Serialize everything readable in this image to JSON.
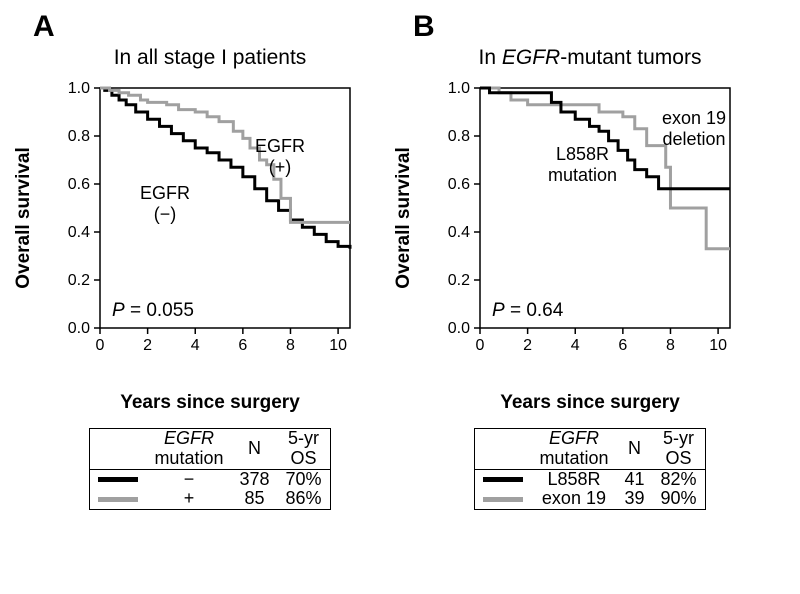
{
  "colors": {
    "black": "#000000",
    "gray": "#a0a0a0",
    "bg": "#ffffff"
  },
  "typography": {
    "panel_label_fontsize": 30,
    "subtitle_fontsize": 21,
    "axis_label_fontsize": 19,
    "tick_fontsize": 16,
    "annot_fontsize": 18,
    "pval_fontsize": 19,
    "table_fontsize": 18
  },
  "panelA": {
    "letter": "A",
    "subtitle": "In all stage I patients",
    "xlabel": "Years since surgery",
    "ylabel": "Overall survival",
    "xlim": [
      0,
      10.5
    ],
    "ylim": [
      0,
      1.0
    ],
    "xticks": [
      0,
      2,
      4,
      6,
      8,
      10
    ],
    "yticks": [
      0.0,
      0.2,
      0.4,
      0.6,
      0.8,
      1.0
    ],
    "pvalue": "P = 0.055",
    "pvalue_prefix": "P",
    "pvalue_rest": " = 0.055",
    "curves": {
      "pos": {
        "color": "#a0a0a0",
        "label1": "EGFR",
        "label2": "(+)",
        "points": [
          [
            0,
            1.0
          ],
          [
            0.4,
            0.99
          ],
          [
            0.8,
            0.98
          ],
          [
            1.2,
            0.97
          ],
          [
            1.7,
            0.95
          ],
          [
            2.0,
            0.94
          ],
          [
            2.8,
            0.93
          ],
          [
            3.3,
            0.91
          ],
          [
            4.0,
            0.9
          ],
          [
            4.5,
            0.88
          ],
          [
            5.0,
            0.86
          ],
          [
            5.6,
            0.82
          ],
          [
            6.0,
            0.79
          ],
          [
            6.3,
            0.75
          ],
          [
            6.7,
            0.7
          ],
          [
            7.0,
            0.68
          ],
          [
            7.3,
            0.62
          ],
          [
            7.6,
            0.54
          ],
          [
            8.0,
            0.44
          ],
          [
            10.5,
            0.44
          ]
        ]
      },
      "neg": {
        "color": "#000000",
        "label1": "EGFR",
        "label2": "(−)",
        "points": [
          [
            0,
            1.0
          ],
          [
            0.2,
            0.99
          ],
          [
            0.5,
            0.97
          ],
          [
            0.8,
            0.95
          ],
          [
            1.1,
            0.93
          ],
          [
            1.5,
            0.9
          ],
          [
            2.0,
            0.87
          ],
          [
            2.5,
            0.84
          ],
          [
            3.0,
            0.81
          ],
          [
            3.5,
            0.78
          ],
          [
            4.0,
            0.75
          ],
          [
            4.5,
            0.73
          ],
          [
            5.0,
            0.7
          ],
          [
            5.5,
            0.67
          ],
          [
            6.0,
            0.63
          ],
          [
            6.5,
            0.58
          ],
          [
            7.0,
            0.53
          ],
          [
            7.5,
            0.49
          ],
          [
            8.0,
            0.45
          ],
          [
            8.5,
            0.42
          ],
          [
            9.0,
            0.39
          ],
          [
            9.5,
            0.36
          ],
          [
            10.0,
            0.34
          ],
          [
            10.5,
            0.33
          ]
        ]
      }
    },
    "legend": {
      "header_col1_line1": "EGFR",
      "header_col1_line2": "mutation",
      "header_col2": "N",
      "header_col3_line1": "5-yr",
      "header_col3_line2": "OS",
      "rows": [
        {
          "swatch_color": "#000000",
          "label": "−",
          "n": "378",
          "os": "70%"
        },
        {
          "swatch_color": "#a0a0a0",
          "label": "+",
          "n": "85",
          "os": "86%"
        }
      ]
    }
  },
  "panelB": {
    "letter": "B",
    "subtitle_prefix": "In ",
    "subtitle_italic": "EGFR",
    "subtitle_suffix": "-mutant tumors",
    "xlabel": "Years since surgery",
    "ylabel": "Overall survival",
    "xlim": [
      0,
      10.5
    ],
    "ylim": [
      0,
      1.0
    ],
    "xticks": [
      0,
      2,
      4,
      6,
      8,
      10
    ],
    "yticks": [
      0.0,
      0.2,
      0.4,
      0.6,
      0.8,
      1.0
    ],
    "pvalue_prefix": "P",
    "pvalue_rest": " = 0.64",
    "curves": {
      "l858r": {
        "color": "#000000",
        "label1": "L858R",
        "label2": "mutation",
        "points": [
          [
            0,
            1.0
          ],
          [
            0.4,
            0.98
          ],
          [
            1.2,
            0.98
          ],
          [
            2.7,
            0.98
          ],
          [
            3.0,
            0.94
          ],
          [
            3.4,
            0.9
          ],
          [
            4.0,
            0.87
          ],
          [
            4.6,
            0.84
          ],
          [
            5.0,
            0.82
          ],
          [
            5.4,
            0.78
          ],
          [
            5.8,
            0.74
          ],
          [
            6.2,
            0.7
          ],
          [
            6.5,
            0.66
          ],
          [
            7.0,
            0.63
          ],
          [
            7.5,
            0.58
          ],
          [
            10.5,
            0.58
          ]
        ]
      },
      "exon19": {
        "color": "#a0a0a0",
        "label1": "exon 19",
        "label2": "deletion",
        "points": [
          [
            0,
            1.0
          ],
          [
            0.8,
            0.98
          ],
          [
            1.3,
            0.95
          ],
          [
            2.0,
            0.93
          ],
          [
            3.5,
            0.93
          ],
          [
            5.0,
            0.9
          ],
          [
            5.8,
            0.9
          ],
          [
            6.0,
            0.88
          ],
          [
            6.5,
            0.83
          ],
          [
            7.0,
            0.76
          ],
          [
            7.8,
            0.67
          ],
          [
            8.0,
            0.5
          ],
          [
            9.5,
            0.5
          ],
          [
            9.5,
            0.33
          ],
          [
            10.5,
            0.33
          ]
        ]
      }
    },
    "legend": {
      "header_col1_line1": "EGFR",
      "header_col1_line2": "mutation",
      "header_col2": "N",
      "header_col3_line1": "5-yr",
      "header_col3_line2": "OS",
      "rows": [
        {
          "swatch_color": "#000000",
          "label": "L858R",
          "n": "41",
          "os": "82%"
        },
        {
          "swatch_color": "#a0a0a0",
          "label": "exon 19",
          "n": "39",
          "os": "90%"
        }
      ]
    }
  }
}
